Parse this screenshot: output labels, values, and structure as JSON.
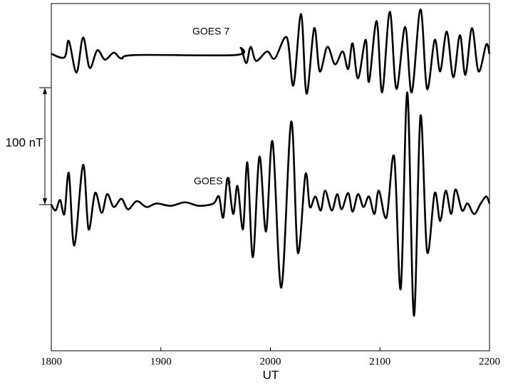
{
  "chart_data": {
    "type": "line",
    "x_label": "UT",
    "xlim": [
      1800,
      2200
    ],
    "xticks": [
      1800,
      1900,
      2000,
      2100,
      2200
    ],
    "ylim": [
      -125,
      172
    ],
    "grid": false,
    "scale_bar": {
      "label": "100 nT",
      "from": 0,
      "to": 100
    },
    "series": [
      {
        "name": "GOES 7",
        "color": "#000000",
        "x": [
          1800,
          1812,
          1816,
          1823,
          1829,
          1835,
          1842,
          1849,
          1857,
          1864,
          1877,
          1968,
          1973,
          1978,
          1982,
          1987,
          1997,
          2004,
          2015,
          2021,
          2028,
          2033,
          2040,
          2045,
          2052,
          2059,
          2066,
          2071,
          2075,
          2080,
          2087,
          2090,
          2097,
          2102,
          2109,
          2115,
          2123,
          2129,
          2137,
          2143,
          2150,
          2155,
          2161,
          2167,
          2173,
          2178,
          2184,
          2190,
          2197,
          2200
        ],
        "values": [
          129,
          126,
          140,
          113,
          143,
          117,
          132,
          124,
          130,
          125,
          128,
          128,
          134,
          121,
          135,
          123,
          131,
          125,
          143,
          102,
          163,
          95,
          151,
          114,
          135,
          120,
          131,
          116,
          138,
          108,
          141,
          105,
          157,
          96,
          165,
          99,
          152,
          96,
          167,
          99,
          141,
          114,
          148,
          109,
          145,
          111,
          151,
          114,
          137,
          129
        ]
      },
      {
        "name": "GOES 6",
        "color": "#000000",
        "x": [
          1800,
          1804,
          1808,
          1812,
          1816,
          1821,
          1829,
          1834,
          1840,
          1846,
          1851,
          1857,
          1864,
          1870,
          1878,
          1887,
          1896,
          1909,
          1922,
          1935,
          1948,
          1953,
          1957,
          1961,
          1966,
          1970,
          1975,
          1979,
          1984,
          1990,
          1996,
          2002,
          2010,
          2019,
          2025,
          2032,
          2036,
          2041,
          2046,
          2050,
          2056,
          2061,
          2065,
          2071,
          2075,
          2080,
          2085,
          2090,
          2095,
          2099,
          2106,
          2113,
          2119,
          2125,
          2131,
          2137,
          2143,
          2150,
          2155,
          2160,
          2165,
          2169,
          2175,
          2180,
          2186,
          2192,
          2197,
          2200
        ],
        "values": [
          0,
          -5,
          4,
          -8,
          27,
          -35,
          34,
          -21,
          10,
          -7,
          9,
          -2,
          5,
          -4,
          3,
          -2,
          1,
          -1,
          2,
          -1,
          1,
          7,
          -11,
          23,
          -8,
          16,
          -21,
          36,
          -45,
          41,
          -23,
          54,
          -71,
          71,
          -41,
          26,
          -2,
          7,
          -5,
          12,
          -5,
          9,
          -4,
          10,
          -6,
          9,
          -2,
          7,
          -8,
          12,
          -11,
          41,
          -72,
          96,
          -95,
          76,
          -40,
          10,
          -14,
          12,
          -8,
          13,
          -5,
          1,
          -8,
          1,
          7,
          1
        ]
      }
    ]
  }
}
